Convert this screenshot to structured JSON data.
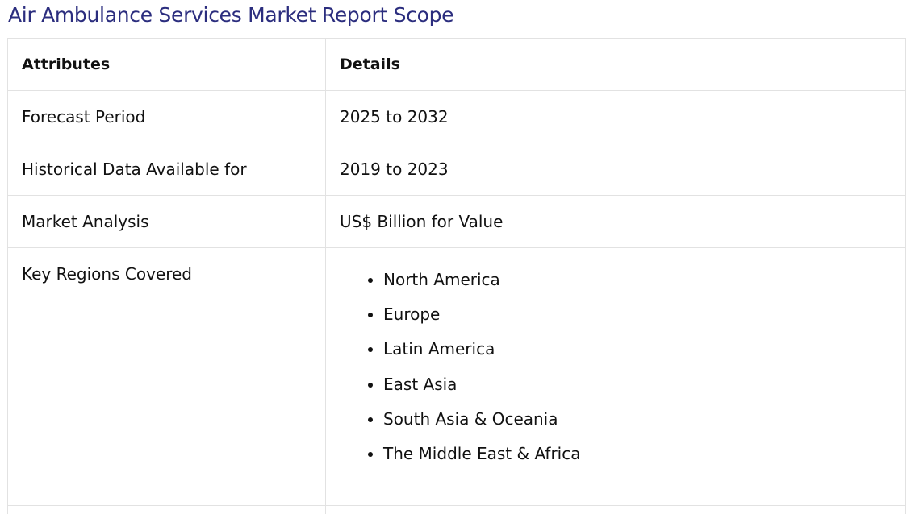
{
  "page": {
    "title": "Air Ambulance Services Market Report Scope"
  },
  "table": {
    "headers": {
      "attributes": "Attributes",
      "details": "Details"
    },
    "rows": [
      {
        "attribute": "Forecast Period",
        "detail": "2025 to 2032"
      },
      {
        "attribute": "Historical Data Available for",
        "detail": "2019 to 2023"
      },
      {
        "attribute": "Market Analysis",
        "detail": "US$ Billion for Value"
      }
    ],
    "regions": {
      "attribute": "Key Regions Covered",
      "items": [
        "North America",
        "Europe",
        "Latin America",
        "East Asia",
        "South Asia & Oceania",
        "The Middle East & Africa"
      ]
    }
  }
}
